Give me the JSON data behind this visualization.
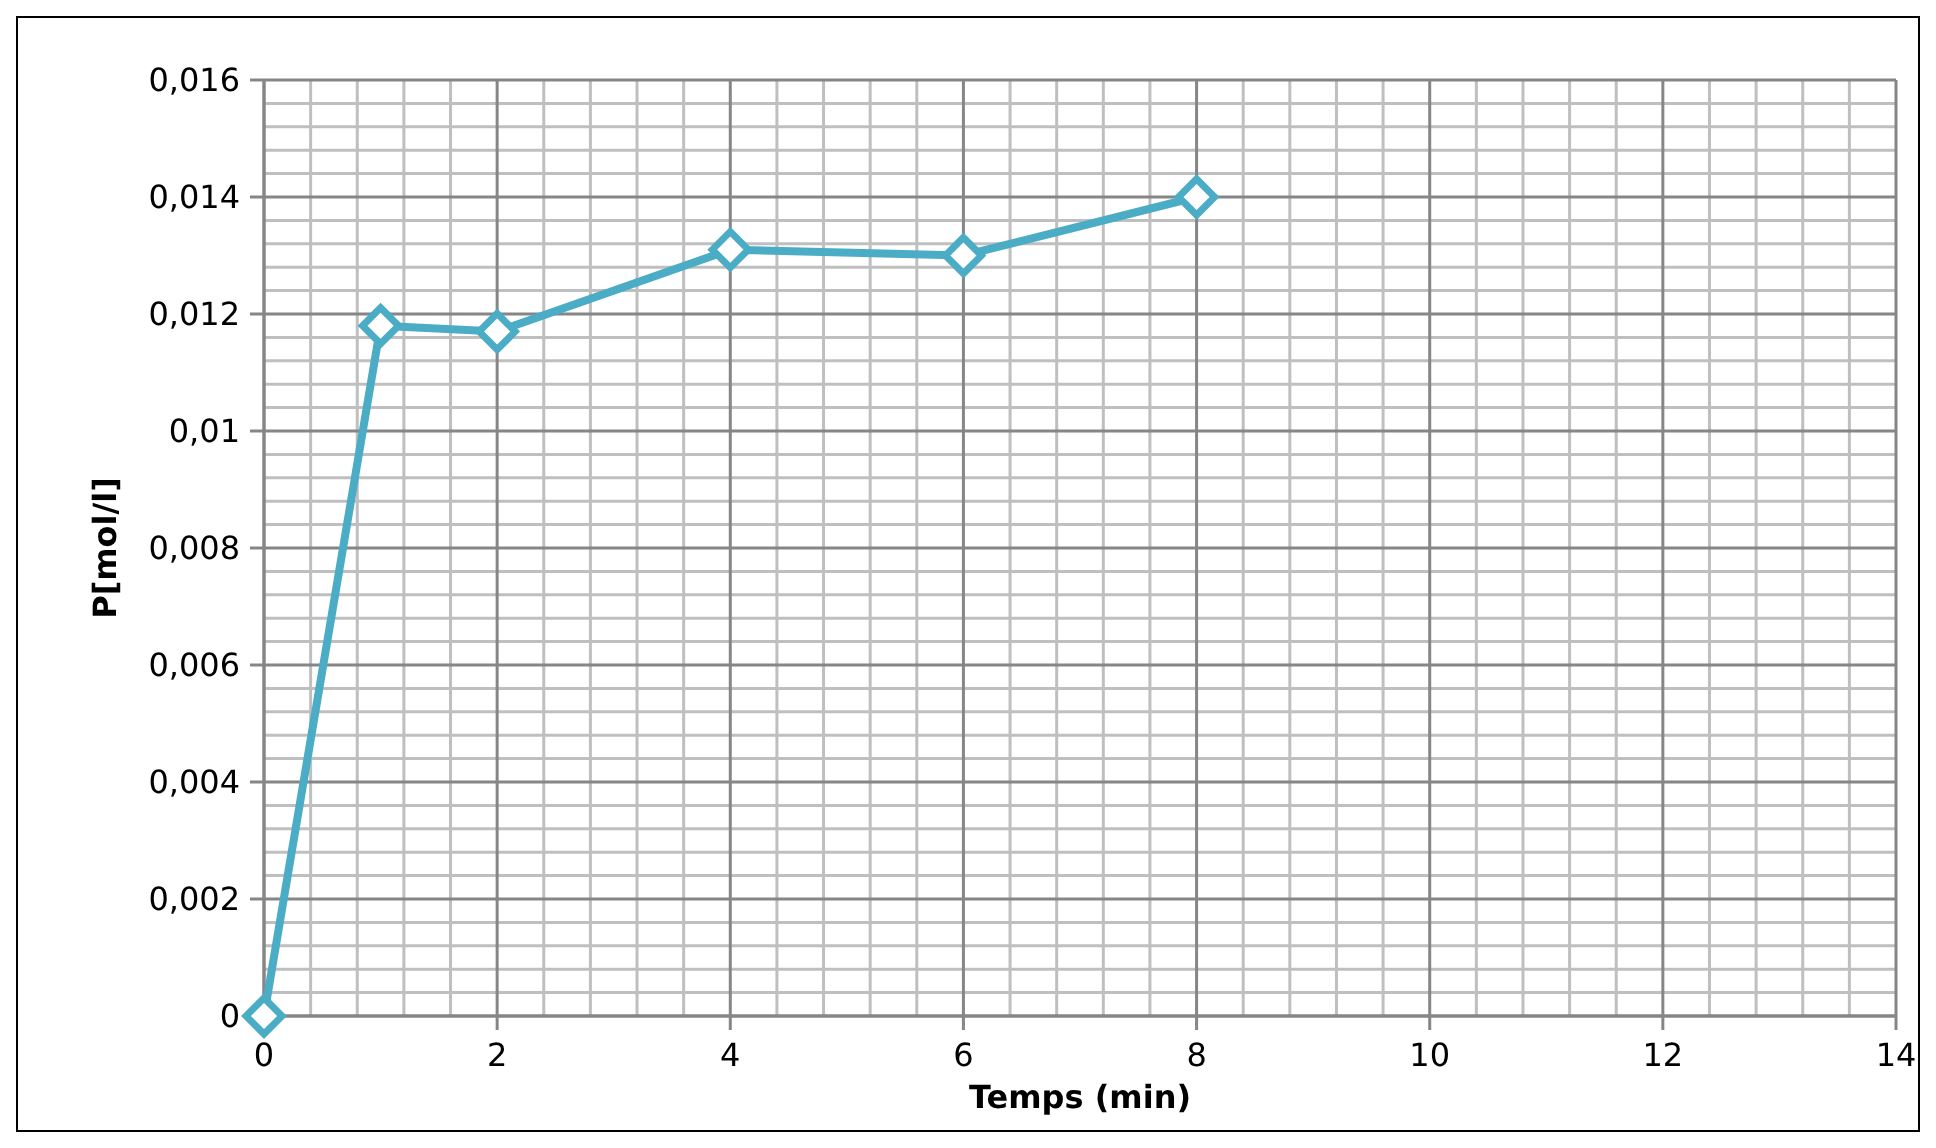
{
  "chart_data": {
    "type": "line",
    "xlabel": "Temps (min)",
    "ylabel": "P[mol/l]",
    "x": [
      0,
      1,
      2,
      4,
      6,
      8
    ],
    "series": [
      {
        "color": "#4bacc6",
        "values": [
          0,
          0.0118,
          0.0117,
          0.0131,
          0.013,
          0.014
        ]
      }
    ],
    "xlim": [
      0,
      14
    ],
    "xticks": [
      0,
      2,
      4,
      6,
      8,
      10,
      12,
      14
    ],
    "ylim": [
      0,
      0.016
    ],
    "yticks": [
      {
        "value": 0,
        "label": "0"
      },
      {
        "value": 0.002,
        "label": "0,002"
      },
      {
        "value": 0.004,
        "label": "0,004"
      },
      {
        "value": 0.006,
        "label": "0,006"
      },
      {
        "value": 0.008,
        "label": "0,008"
      },
      {
        "value": 0.01,
        "label": "0,01"
      },
      {
        "value": 0.012,
        "label": "0,012"
      },
      {
        "value": 0.014,
        "label": "0,014"
      },
      {
        "value": 0.016,
        "label": "0,016"
      }
    ],
    "grid": true,
    "marker": "diamond",
    "line_style": "solid"
  }
}
